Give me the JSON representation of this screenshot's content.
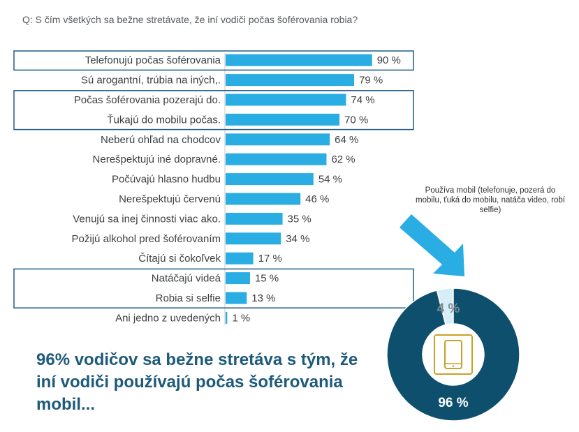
{
  "question": "Q: S čím všetkých sa bežne stretávate, že iní vodiči počas šoférovania robia?",
  "headline": "96% vodičov sa bežne stretáva s tým, že iní vodiči používajú počas šoférovania mobil...",
  "colors": {
    "bar": "#29ade3",
    "highlight_box": "#1f5b87",
    "donut_main": "#0e4f6e",
    "donut_small": "#d7eef8",
    "gold": "#c9a227",
    "arrow": "#29ade3"
  },
  "highlight_groups": [
    [
      "Telefonujú počas šoférovania"
    ],
    [
      "Počas šoférovania pozerajú do.",
      "Ťukajú do mobilu počas."
    ],
    [
      "Natáčajú videá",
      "Robia si selfie"
    ]
  ],
  "chart_data": [
    {
      "type": "bar",
      "orientation": "horizontal",
      "title": "",
      "categories": [
        "Telefonujú počas šoférovania",
        "Sú arogantní, trúbia na iných,.",
        "Počas šoférovania pozerajú do.",
        "Ťukajú do mobilu počas.",
        "Neberú ohľad na chodcov",
        "Nerešpektujú iné dopravné.",
        "Počúvajú hlasno hudbu",
        "Nerešpektujú červenú",
        "Venujú sa inej činnosti viac ako.",
        "Požijú alkohol pred šoférovaním",
        "Čítajú si čokoľvek",
        "Natáčajú videá",
        "Robia si selfie",
        "Ani jedno z uvedených"
      ],
      "values": [
        90,
        79,
        74,
        70,
        64,
        62,
        54,
        46,
        35,
        34,
        17,
        15,
        13,
        1
      ],
      "value_labels": [
        "90 %",
        "79 %",
        "74 %",
        "70 %",
        "64 %",
        "62 %",
        "54 %",
        "46 %",
        "35 %",
        "34 %",
        "17 %",
        "15 %",
        "13 %",
        "1 %"
      ],
      "unit": "%",
      "xlim": [
        0,
        100
      ]
    },
    {
      "type": "pie",
      "style": "donut",
      "caption": "Používa mobil (telefonuje, pozerá do mobilu, ťuká do mobilu, natáča video, robí selfie)",
      "slices": [
        {
          "label": "96 %",
          "value": 96
        },
        {
          "label": "4 %",
          "value": 4
        }
      ],
      "icon": "smartphone-icon"
    }
  ]
}
